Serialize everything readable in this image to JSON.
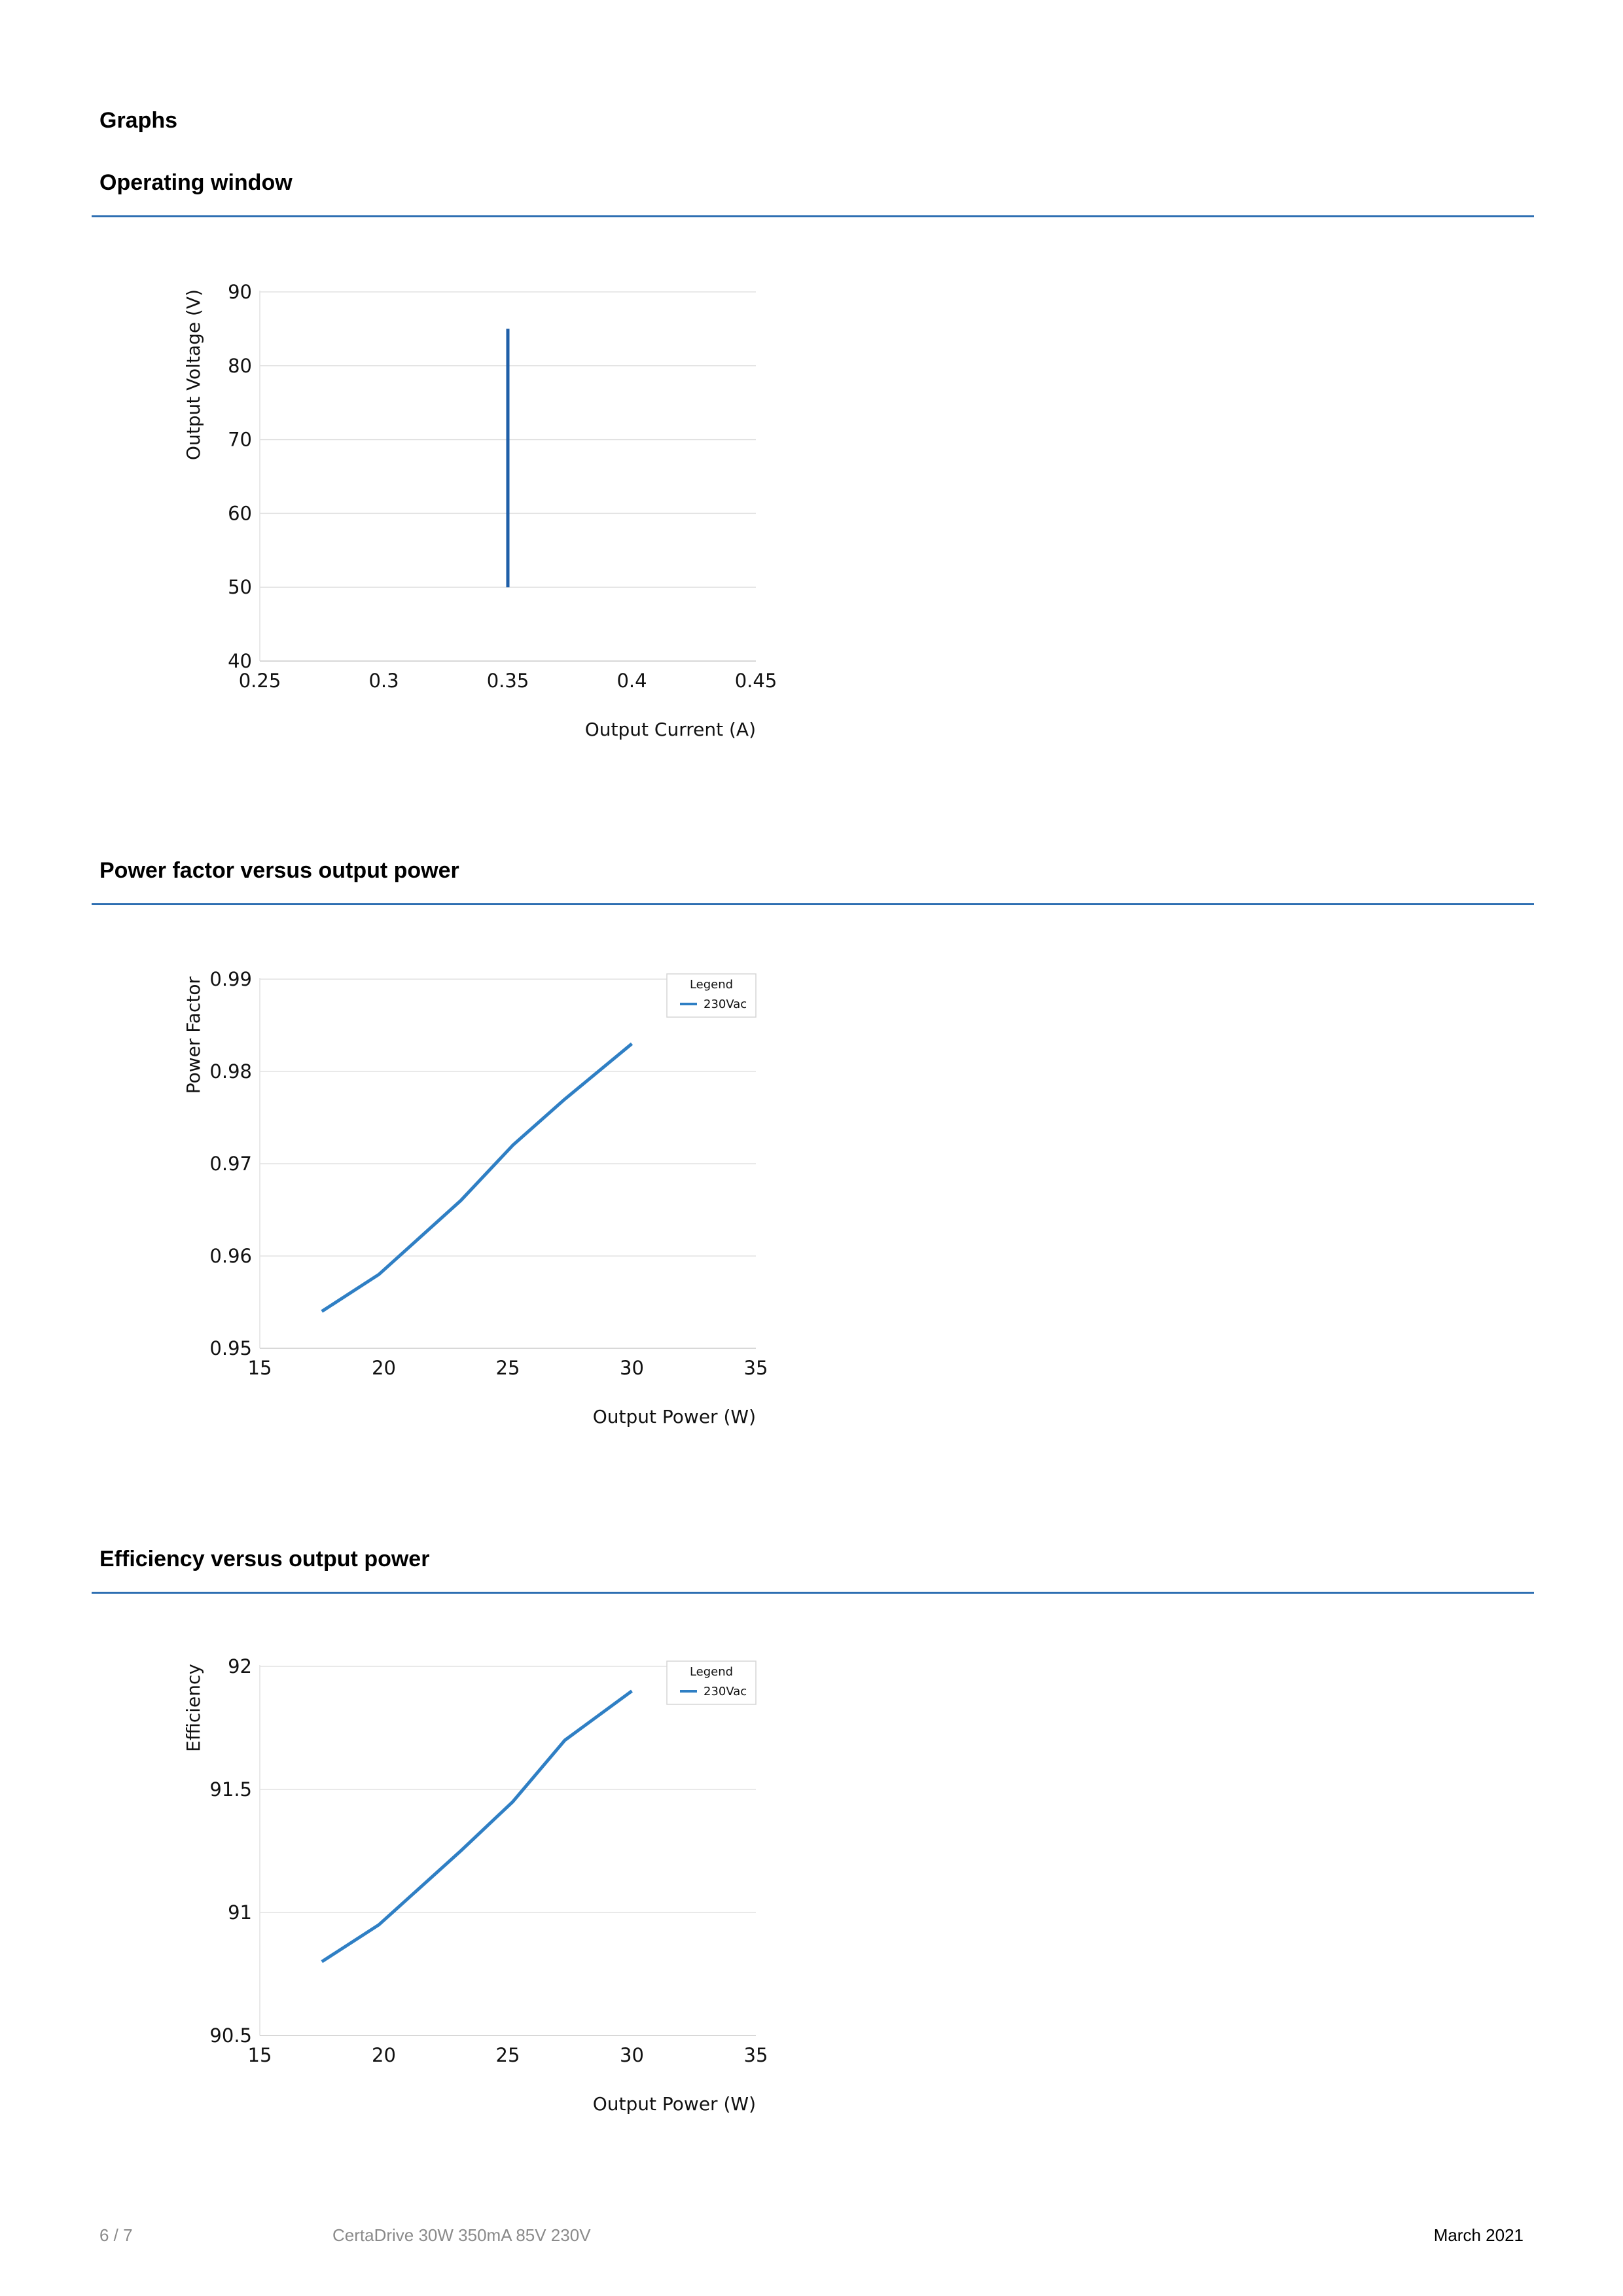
{
  "page": {
    "heading": "Graphs"
  },
  "sections": [
    {
      "title": "Operating window"
    },
    {
      "title": "Power factor versus output power"
    },
    {
      "title": "Efficiency versus output power"
    }
  ],
  "chart_data": [
    {
      "type": "line",
      "title": "Operating window",
      "xlabel": "Output Current (A)",
      "ylabel": "Output Voltage (V)",
      "xlim": [
        0.25,
        0.45
      ],
      "ylim": [
        40,
        90
      ],
      "xticks": [
        0.25,
        0.3,
        0.35,
        0.4,
        0.45
      ],
      "yticks": [
        40,
        50,
        60,
        70,
        80,
        90
      ],
      "xtick_labels": [
        "0.25",
        "0.3",
        "0.35",
        "0.4",
        "0.45"
      ],
      "ytick_labels": [
        "40",
        "50",
        "60",
        "70",
        "80",
        "90"
      ],
      "grid": "horizontal",
      "series": [
        {
          "x": [
            0.35,
            0.35
          ],
          "y": [
            50,
            85
          ],
          "color": "#1f5fa8"
        }
      ]
    },
    {
      "type": "line",
      "title": "Power factor versus output power",
      "xlabel": "Output Power (W)",
      "ylabel": "Power Factor",
      "xlim": [
        15,
        35
      ],
      "ylim": [
        0.95,
        0.99
      ],
      "xticks": [
        15,
        20,
        25,
        30,
        35
      ],
      "yticks": [
        0.95,
        0.96,
        0.97,
        0.98,
        0.99
      ],
      "xtick_labels": [
        "15",
        "20",
        "25",
        "30",
        "35"
      ],
      "ytick_labels": [
        "0.95",
        "0.96",
        "0.97",
        "0.98",
        "0.99"
      ],
      "grid": "horizontal",
      "legend": {
        "title": "Legend",
        "position": "top-right"
      },
      "series": [
        {
          "name": "230Vac",
          "color": "#2f7fc4",
          "x": [
            17.5,
            19.8,
            23.1,
            25.2,
            27.3,
            30
          ],
          "y": [
            0.954,
            0.958,
            0.966,
            0.972,
            0.977,
            0.983
          ]
        }
      ]
    },
    {
      "type": "line",
      "title": "Efficiency versus output power",
      "xlabel": "Output Power (W)",
      "ylabel": "Efficiency",
      "xlim": [
        15,
        35
      ],
      "ylim": [
        90.5,
        92
      ],
      "xticks": [
        15,
        20,
        25,
        30,
        35
      ],
      "yticks": [
        90.5,
        91,
        91.5,
        92
      ],
      "xtick_labels": [
        "15",
        "20",
        "25",
        "30",
        "35"
      ],
      "ytick_labels": [
        "90.5",
        "91",
        "91.5",
        "92"
      ],
      "grid": "horizontal",
      "legend": {
        "title": "Legend",
        "position": "top-right"
      },
      "series": [
        {
          "name": "230Vac",
          "color": "#2f7fc4",
          "x": [
            17.5,
            19.8,
            23.1,
            25.2,
            27.3,
            30
          ],
          "y": [
            90.8,
            90.95,
            91.25,
            91.45,
            91.7,
            91.9
          ]
        }
      ]
    }
  ],
  "footer": {
    "page": "6 / 7",
    "product": "CertaDrive 30W 350mA 85V 230V",
    "date": "March 2021"
  }
}
